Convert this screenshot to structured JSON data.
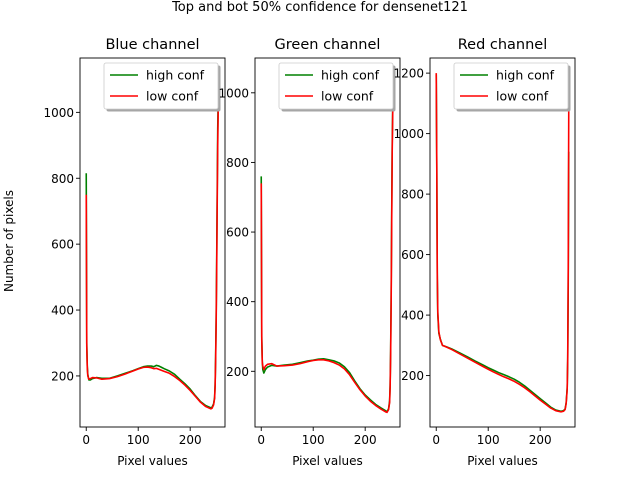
{
  "figure": {
    "suptitle": "Top and bot 50% confidence for densenet121",
    "ylabel": "Number of pixels"
  },
  "chart_data": [
    {
      "type": "line",
      "title": "Blue channel",
      "xlabel": "Pixel values",
      "ylabel": "Number of pixels",
      "xlim": [
        -12,
        267
      ],
      "ylim": [
        45,
        1165
      ],
      "xticks": [
        0,
        100,
        200
      ],
      "yticks": [
        200,
        400,
        600,
        800,
        1000
      ],
      "legend": {
        "location": "upper right",
        "entries": [
          "high conf",
          "low conf"
        ]
      },
      "series": [
        {
          "name": "high conf",
          "color": "#008000",
          "x": [
            0,
            1,
            2,
            3,
            5,
            8,
            12,
            20,
            30,
            45,
            60,
            75,
            90,
            100,
            110,
            118,
            125,
            130,
            135,
            140,
            145,
            150,
            160,
            170,
            180,
            190,
            200,
            210,
            220,
            230,
            240,
            242,
            245,
            247,
            248,
            249,
            250,
            251,
            252,
            253,
            254,
            255
          ],
          "y": [
            815,
            300,
            230,
            205,
            188,
            188,
            192,
            195,
            193,
            193,
            200,
            208,
            216,
            222,
            228,
            230,
            230,
            228,
            232,
            230,
            226,
            222,
            215,
            205,
            190,
            176,
            160,
            140,
            122,
            110,
            103,
            105,
            115,
            135,
            175,
            260,
            380,
            550,
            760,
            950,
            1060,
            1100
          ]
        },
        {
          "name": "low conf",
          "color": "#ff0000",
          "x": [
            0,
            1,
            2,
            3,
            5,
            8,
            12,
            20,
            30,
            45,
            60,
            75,
            90,
            100,
            110,
            118,
            125,
            130,
            135,
            140,
            145,
            150,
            160,
            170,
            180,
            190,
            200,
            210,
            220,
            230,
            240,
            242,
            245,
            247,
            248,
            249,
            250,
            251,
            252,
            253,
            254,
            255
          ],
          "y": [
            750,
            290,
            225,
            200,
            190,
            192,
            195,
            194,
            190,
            192,
            198,
            206,
            215,
            221,
            226,
            227,
            225,
            222,
            223,
            220,
            217,
            214,
            208,
            198,
            186,
            172,
            156,
            138,
            120,
            107,
            100,
            102,
            112,
            132,
            170,
            250,
            360,
            520,
            720,
            900,
            1010,
            1060
          ]
        }
      ]
    },
    {
      "type": "line",
      "title": "Green channel",
      "xlabel": "Pixel values",
      "ylabel": "",
      "xlim": [
        -12,
        267
      ],
      "ylim": [
        40,
        1100
      ],
      "xticks": [
        0,
        100,
        200
      ],
      "yticks": [
        200,
        400,
        600,
        800,
        1000
      ],
      "legend": {
        "location": "upper right",
        "entries": [
          "high conf",
          "low conf"
        ]
      },
      "series": [
        {
          "name": "high conf",
          "color": "#008000",
          "x": [
            0,
            1,
            2,
            3,
            5,
            8,
            12,
            20,
            30,
            45,
            60,
            75,
            90,
            100,
            110,
            120,
            130,
            140,
            150,
            160,
            170,
            180,
            190,
            200,
            210,
            220,
            230,
            240,
            242,
            245,
            247,
            248,
            249,
            250,
            251,
            252,
            253,
            254,
            255
          ],
          "y": [
            760,
            300,
            230,
            205,
            195,
            205,
            212,
            217,
            215,
            218,
            220,
            225,
            230,
            232,
            235,
            236,
            233,
            230,
            224,
            213,
            196,
            172,
            150,
            132,
            118,
            105,
            95,
            86,
            84,
            92,
            115,
            160,
            260,
            420,
            640,
            850,
            960,
            1010,
            1030
          ]
        },
        {
          "name": "low conf",
          "color": "#ff0000",
          "x": [
            0,
            1,
            2,
            3,
            5,
            8,
            12,
            20,
            30,
            45,
            60,
            75,
            90,
            100,
            110,
            120,
            130,
            140,
            150,
            160,
            170,
            180,
            190,
            200,
            210,
            220,
            230,
            240,
            242,
            245,
            247,
            248,
            249,
            250,
            251,
            252,
            253,
            254,
            255
          ],
          "y": [
            740,
            290,
            225,
            215,
            205,
            215,
            220,
            222,
            215,
            216,
            218,
            222,
            228,
            231,
            233,
            233,
            230,
            225,
            218,
            207,
            190,
            168,
            147,
            129,
            114,
            102,
            92,
            83,
            82,
            90,
            110,
            155,
            250,
            400,
            620,
            830,
            940,
            990,
            1010
          ]
        }
      ]
    },
    {
      "type": "line",
      "title": "Red channel",
      "xlabel": "Pixel values",
      "ylabel": "",
      "xlim": [
        -12,
        267
      ],
      "ylim": [
        30,
        1250
      ],
      "xticks": [
        0,
        100,
        200
      ],
      "yticks": [
        200,
        400,
        600,
        800,
        1000,
        1200
      ],
      "legend": {
        "location": "upper right",
        "entries": [
          "high conf",
          "low conf"
        ]
      },
      "series": [
        {
          "name": "high conf",
          "color": "#008000",
          "x": [
            0,
            1,
            2,
            3,
            5,
            8,
            12,
            20,
            30,
            45,
            60,
            75,
            90,
            100,
            110,
            120,
            130,
            140,
            150,
            160,
            170,
            180,
            190,
            200,
            210,
            220,
            230,
            240,
            245,
            248,
            250,
            252,
            253,
            254,
            255
          ],
          "y": [
            1195,
            900,
            520,
            400,
            340,
            320,
            300,
            295,
            288,
            275,
            262,
            248,
            235,
            226,
            218,
            210,
            203,
            196,
            188,
            178,
            166,
            152,
            138,
            124,
            110,
            96,
            86,
            82,
            84,
            90,
            110,
            160,
            250,
            500,
            940
          ]
        },
        {
          "name": "low conf",
          "color": "#ff0000",
          "x": [
            0,
            1,
            2,
            3,
            5,
            8,
            12,
            20,
            30,
            45,
            60,
            75,
            90,
            100,
            110,
            120,
            130,
            140,
            150,
            160,
            170,
            180,
            190,
            200,
            210,
            220,
            230,
            240,
            245,
            248,
            250,
            252,
            253,
            254,
            255
          ],
          "y": [
            1200,
            910,
            540,
            410,
            345,
            318,
            300,
            294,
            286,
            272,
            258,
            244,
            230,
            221,
            212,
            204,
            196,
            189,
            181,
            171,
            160,
            147,
            133,
            119,
            106,
            93,
            84,
            80,
            82,
            88,
            108,
            155,
            260,
            560,
            1090
          ]
        }
      ]
    }
  ]
}
